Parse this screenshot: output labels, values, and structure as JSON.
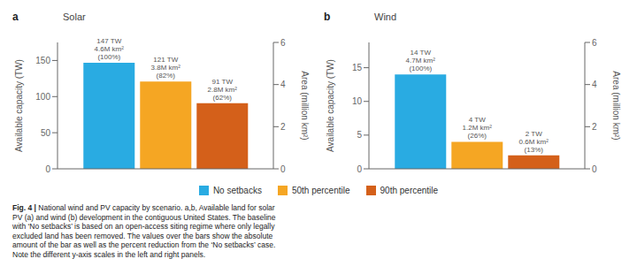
{
  "chart_data": [
    {
      "type": "bar",
      "title": "Solar",
      "panel_label": "a",
      "categories": [
        null
      ],
      "series": [
        {
          "name": "No setbacks",
          "color": "#29ABE2",
          "values": [
            147
          ],
          "value_labels": [
            "147 TW\n4.6M km²\n(100%)"
          ]
        },
        {
          "name": "50th percentile",
          "color": "#F5A623",
          "values": [
            121
          ],
          "value_labels": [
            "121 TW\n3.8M km²\n(82%)"
          ]
        },
        {
          "name": "90th percentile",
          "color": "#D4601A",
          "values": [
            91
          ],
          "value_labels": [
            "91 TW\n2.8M km²\n(62%)"
          ]
        }
      ],
      "ylabel": "Available capacity (TW)",
      "ylim": [
        0,
        175
      ],
      "yticks": [
        0,
        50,
        100,
        150
      ],
      "y2label": "Area (million km²)",
      "y2lim": [
        0,
        6
      ],
      "y2ticks": [
        0,
        2,
        4,
        6
      ],
      "data_labels": true,
      "grid": false
    },
    {
      "type": "bar",
      "title": "Wind",
      "panel_label": "b",
      "categories": [
        null
      ],
      "series": [
        {
          "name": "No setbacks",
          "color": "#29ABE2",
          "values": [
            14
          ],
          "value_labels": [
            "14 TW\n4.7M km²\n(100%)"
          ]
        },
        {
          "name": "50th percentile",
          "color": "#F5A623",
          "values": [
            4
          ],
          "value_labels": [
            "4 TW\n1.2M km²\n(26%)"
          ]
        },
        {
          "name": "90th percentile",
          "color": "#D4601A",
          "values": [
            2
          ],
          "value_labels": [
            "2 TW\n0.6M km²\n(13%)"
          ]
        }
      ],
      "ylabel": "Available capacity (TW)",
      "ylim": [
        0,
        18.75
      ],
      "yticks": [
        0,
        5,
        10,
        15
      ],
      "y2label": "Area (million km²)",
      "y2lim": [
        0,
        6
      ],
      "y2ticks": [
        0,
        2,
        4,
        6
      ],
      "data_labels": true,
      "grid": false
    }
  ],
  "caption": {
    "left": [
      "Fig. 4 | National wind and PV capacity by scenario. a,b, Available land for solar",
      "PV (a) and wind (b) development in the contiguous United States. The baseline",
      "with ‘No setbacks’ is based on an open-access siting regime where only legally"
    ],
    "right": [
      "excluded land has been removed. The values over the bars show the absolute",
      "amount of the bar as well as the percent reduction from the ‘No setbacks’ case.",
      "Note the different y-axis scales in the left and right panels."
    ]
  }
}
